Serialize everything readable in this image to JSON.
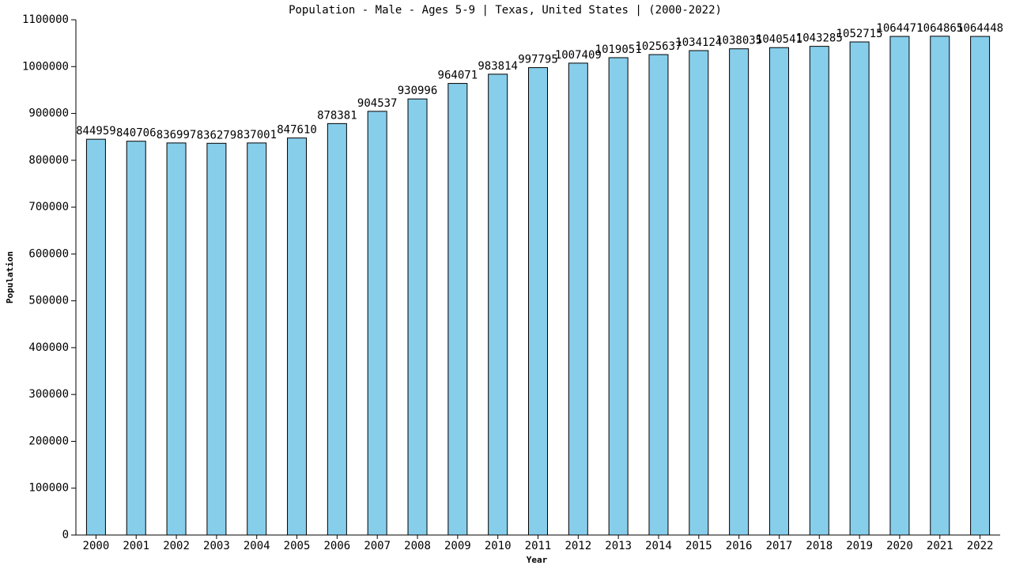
{
  "chart_data": {
    "type": "bar",
    "title": "Population - Male - Ages 5-9 | Texas, United States |  (2000-2022)",
    "x_label": "Year",
    "y_label": "Population",
    "categories": [
      "2000",
      "2001",
      "2002",
      "2003",
      "2004",
      "2005",
      "2006",
      "2007",
      "2008",
      "2009",
      "2010",
      "2011",
      "2012",
      "2013",
      "2014",
      "2015",
      "2016",
      "2017",
      "2018",
      "2019",
      "2020",
      "2021",
      "2022"
    ],
    "values": [
      844959,
      840706,
      836997,
      836279,
      837001,
      847610,
      878381,
      904537,
      930996,
      964071,
      983814,
      997795,
      1007409,
      1019051,
      1025637,
      1034124,
      1038035,
      1040541,
      1043285,
      1052715,
      1064471,
      1064865,
      1064448
    ],
    "color": "#87ceeb",
    "ylim": [
      0,
      1100000
    ],
    "yticks": [
      0,
      100000,
      200000,
      300000,
      400000,
      500000,
      600000,
      700000,
      800000,
      900000,
      1000000,
      1100000
    ],
    "grid": false
  }
}
